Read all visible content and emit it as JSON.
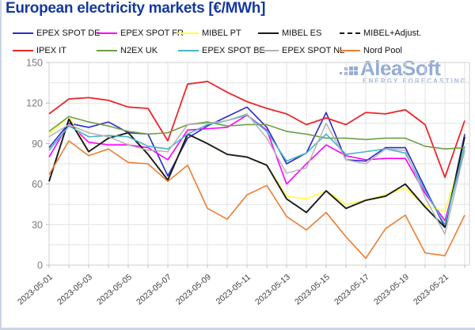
{
  "title": "European electricity markets [€/MWh]",
  "watermark": {
    "name": "AleaSoft",
    "tagline": "ENERGY FORECASTING"
  },
  "colors": {
    "title": "#15399e",
    "y_tick_label": "#7a7a7a",
    "x_tick_label": "#3f3f3f",
    "grid": "#e2e2e2",
    "spine": "#cfcfcf",
    "tick": "#aaaaaa",
    "watermark": "#8ba6d3",
    "legend_text": "#111111"
  },
  "legend": {
    "rows": [
      [
        "EPEX SPOT DE",
        "EPEX SPOT FR",
        "MIBEL PT",
        "MIBEL ES",
        "MIBEL+Adjust."
      ],
      [
        "IPEX IT",
        "N2EX UK",
        "EPEX SPOT BE",
        "EPEX SPOT NL",
        "Nord Pool"
      ]
    ]
  },
  "chart_data": {
    "type": "line",
    "title": "European electricity markets [€/MWh]",
    "unit": "€/MWh",
    "ylim": [
      0,
      150
    ],
    "ytick_step": 30,
    "grid_minor_step": 15,
    "grid": true,
    "legend_position": "top",
    "dates": [
      "2023-05-01",
      "2023-05-02",
      "2023-05-03",
      "2023-05-04",
      "2023-05-05",
      "2023-05-06",
      "2023-05-07",
      "2023-05-08",
      "2023-05-09",
      "2023-05-10",
      "2023-05-11",
      "2023-05-12",
      "2023-05-13",
      "2023-05-14",
      "2023-05-15",
      "2023-05-16",
      "2023-05-17",
      "2023-05-18",
      "2023-05-19",
      "2023-05-20",
      "2023-05-21",
      "2023-05-22"
    ],
    "xtick_labels": [
      "2023-05-01",
      "2023-05-03",
      "2023-05-05",
      "2023-05-07",
      "2023-05-09",
      "2023-05-11",
      "2023-05-13",
      "2023-05-15",
      "2023-05-17",
      "2023-05-19",
      "2023-05-21"
    ],
    "series": [
      {
        "name": "EPEX SPOT DE",
        "color": "#2b2bc8",
        "dash": false,
        "width": 1.6,
        "values": [
          87,
          105,
          102,
          106,
          98,
          97,
          66,
          94,
          103,
          110,
          117,
          102,
          75,
          83,
          113,
          78,
          77,
          87,
          87,
          57,
          28,
          97
        ]
      },
      {
        "name": "EPEX SPOT FR",
        "color": "#ff00ff",
        "dash": false,
        "width": 1.6,
        "values": [
          80,
          105,
          91,
          89,
          89,
          87,
          78,
          100,
          101,
          102,
          111,
          100,
          60,
          75,
          89,
          81,
          78,
          79,
          79,
          53,
          33,
          85
        ]
      },
      {
        "name": "MIBEL PT",
        "color": "#ffff3d",
        "dash": false,
        "width": 1.7,
        "values": [
          97,
          110,
          84,
          94,
          98,
          82,
          63,
          97,
          90,
          82,
          80,
          74,
          51,
          49,
          55,
          45,
          48,
          52,
          57,
          44,
          40,
          86
        ]
      },
      {
        "name": "MIBEL ES",
        "color": "#1a1a1a",
        "dash": false,
        "width": 1.9,
        "values": [
          62,
          108,
          84,
          94,
          98,
          82,
          63,
          97,
          90,
          82,
          80,
          74,
          49,
          39,
          55,
          42,
          48,
          51,
          60,
          43,
          28,
          95
        ]
      },
      {
        "name": "MIBEL+Adjust.",
        "color": "#1a1a1a",
        "dash": true,
        "width": 1.3,
        "values": [
          62,
          108,
          84,
          94,
          98,
          82,
          63,
          97,
          90,
          82,
          80,
          74,
          49,
          39,
          55,
          42,
          48,
          51,
          60,
          43,
          28,
          95
        ]
      },
      {
        "name": "IPEX IT",
        "color": "#ee2527",
        "dash": false,
        "width": 1.8,
        "values": [
          112,
          123,
          124,
          122,
          117,
          116,
          92,
          134,
          136,
          128,
          121,
          116,
          112,
          104,
          109,
          104,
          113,
          112,
          115,
          104,
          65,
          107
        ]
      },
      {
        "name": "N2EX UK",
        "color": "#6b9e45",
        "dash": false,
        "width": 1.6,
        "values": [
          99,
          110,
          106,
          103,
          99,
          97,
          98,
          104,
          106,
          103,
          104,
          104,
          99,
          97,
          94,
          94,
          93,
          94,
          94,
          88,
          86,
          87
        ]
      },
      {
        "name": "EPEX SPOT BE",
        "color": "#45b5c8",
        "dash": false,
        "width": 1.6,
        "values": [
          85,
          103,
          95,
          96,
          95,
          88,
          86,
          97,
          104,
          107,
          111,
          99,
          77,
          83,
          97,
          82,
          84,
          86,
          83,
          55,
          30,
          88
        ]
      },
      {
        "name": "EPEX SPOT NL",
        "color": "#b3b3b3",
        "dash": false,
        "width": 1.5,
        "values": [
          95,
          104,
          98,
          95,
          89,
          85,
          84,
          104,
          105,
          107,
          112,
          94,
          68,
          72,
          105,
          78,
          75,
          86,
          85,
          50,
          23,
          85
        ]
      },
      {
        "name": "Nord Pool",
        "color": "#ed7d31",
        "dash": false,
        "width": 1.6,
        "values": [
          67,
          92,
          81,
          86,
          76,
          75,
          62,
          74,
          42,
          34,
          52,
          59,
          36,
          26,
          39,
          21,
          5,
          27,
          37,
          9,
          7,
          37
        ]
      }
    ]
  }
}
